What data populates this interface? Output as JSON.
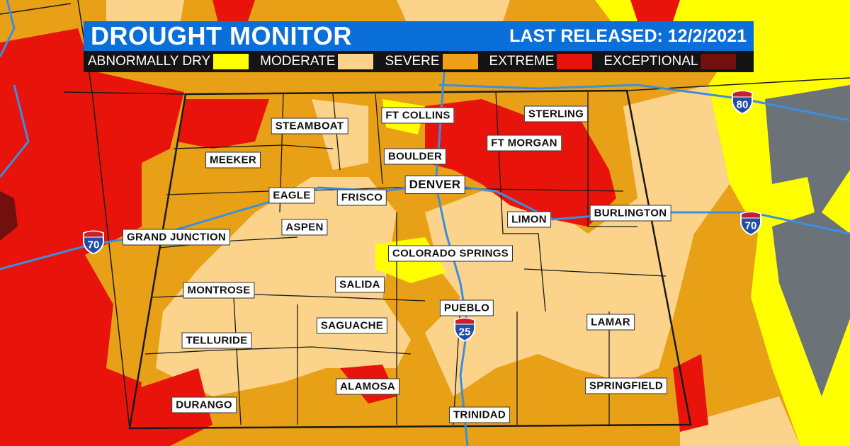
{
  "header": {
    "title": "DROUGHT MONITOR",
    "released": "LAST RELEASED: 12/2/2021"
  },
  "legend": [
    {
      "label": "ABNORMALLY DRY",
      "color": "#ffff00"
    },
    {
      "label": "MODERATE",
      "color": "#fcd38a"
    },
    {
      "label": "SEVERE",
      "color": "#f0a018"
    },
    {
      "label": "EXTREME",
      "color": "#e8140c"
    },
    {
      "label": "EXCEPTIONAL",
      "color": "#721010"
    }
  ],
  "cities": [
    {
      "name": "STEAMBOAT"
    },
    {
      "name": "FT COLLINS"
    },
    {
      "name": "STERLING"
    },
    {
      "name": "MEEKER"
    },
    {
      "name": "BOULDER"
    },
    {
      "name": "FT MORGAN"
    },
    {
      "name": "EAGLE"
    },
    {
      "name": "FRISCO"
    },
    {
      "name": "DENVER"
    },
    {
      "name": "LIMON"
    },
    {
      "name": "BURLINGTON"
    },
    {
      "name": "GRAND JUNCTION"
    },
    {
      "name": "ASPEN"
    },
    {
      "name": "COLORADO SPRINGS"
    },
    {
      "name": "MONTROSE"
    },
    {
      "name": "SALIDA"
    },
    {
      "name": "PUEBLO"
    },
    {
      "name": "SAGUACHE"
    },
    {
      "name": "LAMAR"
    },
    {
      "name": "TELLURIDE"
    },
    {
      "name": "ALAMOSA"
    },
    {
      "name": "SPRINGFIELD"
    },
    {
      "name": "DURANGO"
    },
    {
      "name": "TRINIDAD"
    }
  ],
  "interstates": [
    {
      "number": "70",
      "icon": "interstate-shield-icon"
    },
    {
      "number": "70",
      "icon": "interstate-shield-icon"
    },
    {
      "number": "80",
      "icon": "interstate-shield-icon"
    },
    {
      "number": "25",
      "icon": "interstate-shield-icon"
    }
  ],
  "colors": {
    "highway": "#3a8fe0",
    "no_data": "#6b7278"
  }
}
